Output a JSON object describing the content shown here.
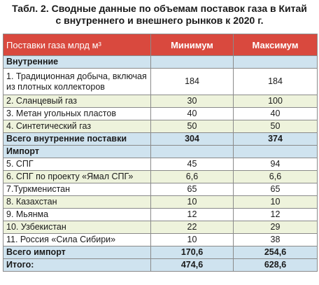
{
  "caption": {
    "line1": "Табл. 2. Сводные данные по объемам поставок газа в Китай",
    "line2": "с внутреннего и внешнего рынков к 2020 г."
  },
  "table": {
    "headers": [
      "Поставки газа млрд м³",
      "Минимум",
      "Максимум"
    ],
    "domestic_title": "Внутренние",
    "domestic_rows": [
      {
        "name": "1. Традиционная добыча, включая из плотных коллекторов",
        "min": "184",
        "max": "184"
      },
      {
        "name": "2. Сланцевый газ",
        "min": "30",
        "max": "100"
      },
      {
        "name": "3. Метан угольных пластов",
        "min": "40",
        "max": "40"
      },
      {
        "name": "4. Синтетический газ",
        "min": "50",
        "max": "50"
      }
    ],
    "domestic_total": {
      "name": "Всего внутренние поставки",
      "min": "304",
      "max": "374"
    },
    "import_title": "Импорт",
    "import_rows": [
      {
        "name": "5. СПГ",
        "min": "45",
        "max": "94"
      },
      {
        "name": "6. СПГ по проекту «Ямал СПГ»",
        "min": "6,6",
        "max": "6,6"
      },
      {
        "name": "7.Туркменистан",
        "min": "65",
        "max": "65"
      },
      {
        "name": "8. Казахстан",
        "min": "10",
        "max": "10"
      },
      {
        "name": "9. Мьянма",
        "min": "12",
        "max": "12"
      },
      {
        "name": "10. Узбекистан",
        "min": "22",
        "max": "29"
      },
      {
        "name": "11. Россия «Сила Сибири»",
        "min": "10",
        "max": "38"
      }
    ],
    "import_total": {
      "name": "Всего импорт",
      "min": "170,6",
      "max": "254,6"
    },
    "grand_total": {
      "name": "Итого:",
      "min": "474,6",
      "max": "628,6"
    }
  },
  "colors": {
    "header_bg": "#d9493e",
    "section_bg": "#cfe3ef",
    "alt_row_bg": "#eef3dc"
  }
}
